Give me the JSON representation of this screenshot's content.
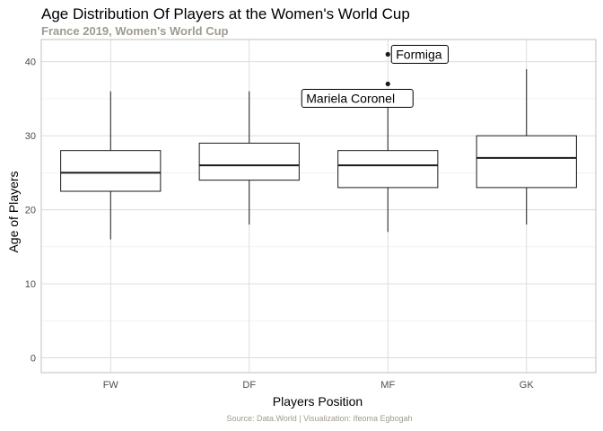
{
  "chart_data": {
    "type": "boxplot",
    "title": "Age Distribution Of Players at the Women's World Cup",
    "subtitle": "France 2019, Women's World Cup",
    "caption": "Source: Data.World | Visualization: Ifeoma Egbogah",
    "xlabel": "Players Position",
    "ylabel": "Age of Players",
    "ylim": [
      -2,
      43
    ],
    "yticks": [
      0,
      10,
      20,
      30,
      40
    ],
    "categories": [
      "FW",
      "DF",
      "MF",
      "GK"
    ],
    "boxes": [
      {
        "category": "FW",
        "min": 16,
        "q1": 22.5,
        "median": 25,
        "q3": 28,
        "max": 36
      },
      {
        "category": "DF",
        "min": 18,
        "q1": 24,
        "median": 26,
        "q3": 29,
        "max": 36
      },
      {
        "category": "MF",
        "min": 17,
        "q1": 23,
        "median": 26,
        "q3": 28,
        "max": 34
      },
      {
        "category": "GK",
        "min": 18,
        "q1": 23,
        "median": 27,
        "q3": 30,
        "max": 39
      }
    ],
    "outliers": [
      {
        "category": "MF",
        "value": 41,
        "label": "Formiga"
      },
      {
        "category": "MF",
        "value": 37,
        "label": "Mariela Coronel"
      }
    ],
    "grid": true,
    "colors": {
      "box_fill": "#ffffff",
      "box_line": "#1a1a1a",
      "grid_major": "#d9d9d9",
      "grid_minor": "#ebebeb",
      "subtitle": "#a09a90"
    }
  }
}
